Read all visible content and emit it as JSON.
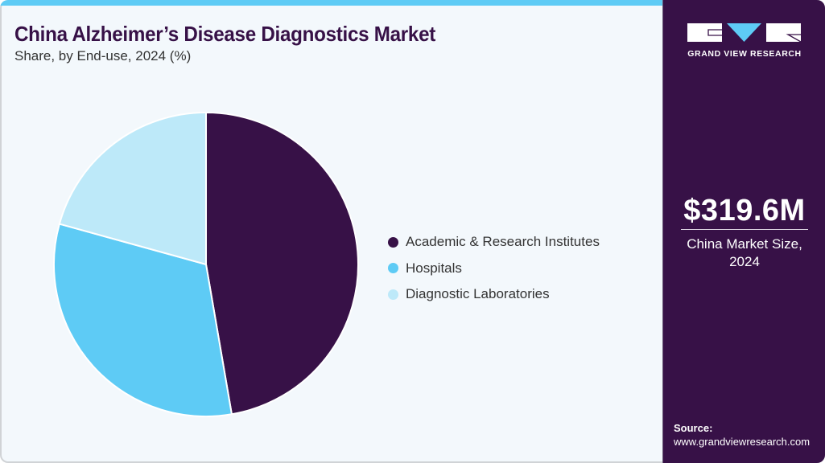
{
  "header": {
    "title": "China Alzheimer’s Disease Diagnostics Market",
    "subtitle": "Share, by End-use, 2024 (%)"
  },
  "chart_data": {
    "type": "pie",
    "title": "China Alzheimer’s Disease Diagnostics Market",
    "subtitle": "Share, by End-use, 2024 (%)",
    "categories": [
      "Academic & Research Institutes",
      "Hospitals",
      "Diagnostic Laboratories"
    ],
    "values": [
      47.3,
      32.0,
      20.7
    ],
    "colors": [
      "#371147",
      "#5ecbf5",
      "#bde9f9"
    ],
    "start_angle": "12 o'clock",
    "direction": "clockwise",
    "legend_position": "right",
    "data_labels": false
  },
  "legend": {
    "items": [
      {
        "label": "Academic & Research Institutes",
        "color": "#371147"
      },
      {
        "label": "Hospitals",
        "color": "#5ecbf5"
      },
      {
        "label": "Diagnostic Laboratories",
        "color": "#bde9f9"
      }
    ]
  },
  "sidebar": {
    "logo_text": "GRAND VIEW RESEARCH",
    "market_value": "$319.6M",
    "market_label_line1": "China Market Size,",
    "market_label_line2": "2024",
    "source_label": "Source:",
    "source_url": "www.grandviewresearch.com"
  },
  "colors": {
    "brand_purple": "#371147",
    "accent_blue": "#5ecbf5",
    "light_blue": "#bde9f9",
    "background": "#f3f8fc"
  }
}
